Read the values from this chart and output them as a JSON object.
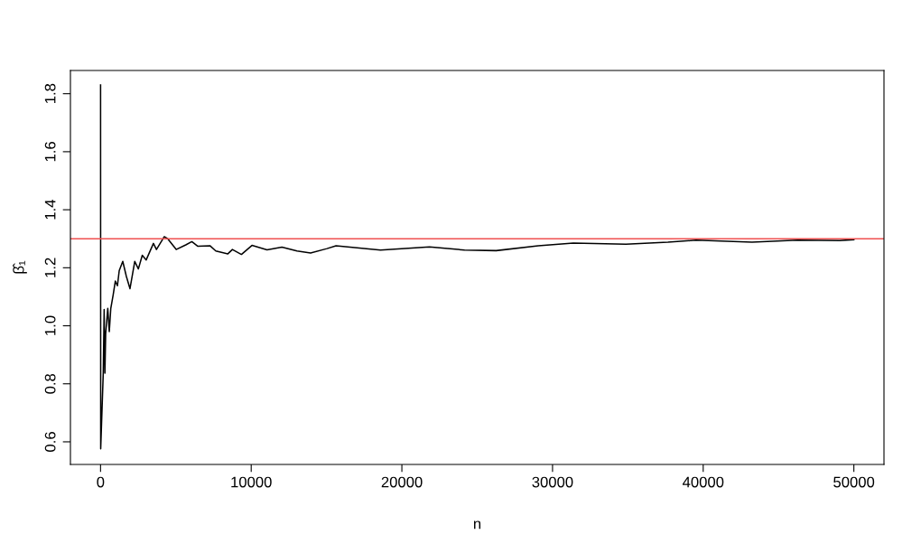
{
  "chart_data": {
    "type": "line",
    "xlabel": "n",
    "ylabel": "β̂₁",
    "xlim": [
      -1999,
      51999
    ],
    "ylim": [
      0.522,
      1.88
    ],
    "xticks": [
      0,
      10000,
      20000,
      30000,
      40000,
      50000
    ],
    "yticks": [
      0.6,
      0.8,
      {
        "value": 1,
        "label": "1.0"
      },
      1.2,
      1.4,
      1.6,
      1.8
    ],
    "grid": false,
    "legend": false,
    "marker": "none",
    "line_style": "solid",
    "ref_lines": [
      {
        "axis": "y",
        "value": 1.3,
        "color": "#f05050"
      }
    ],
    "series": [
      {
        "color": "#000000",
        "x": [
          2,
          10,
          180,
          240,
          290,
          340,
          480,
          580,
          680,
          840,
          980,
          1120,
          1240,
          1475,
          1715,
          1955,
          2270,
          2510,
          2770,
          3030,
          3510,
          3710,
          4230,
          4460,
          5020,
          5660,
          6060,
          6460,
          7260,
          7650,
          8450,
          8750,
          9350,
          10050,
          11050,
          12040,
          13040,
          13940,
          15030,
          15630,
          18580,
          21830,
          24160,
          26260,
          29050,
          31380,
          34870,
          37660,
          39520,
          43240,
          46270,
          49060,
          50000
        ],
        "values": [
          1.83,
          0.576,
          0.837,
          1.056,
          0.837,
          0.972,
          1.06,
          0.98,
          1.06,
          1.107,
          1.154,
          1.138,
          1.19,
          1.222,
          1.17,
          1.128,
          1.222,
          1.196,
          1.243,
          1.227,
          1.284,
          1.263,
          1.307,
          1.3,
          1.263,
          1.279,
          1.29,
          1.274,
          1.276,
          1.258,
          1.248,
          1.263,
          1.246,
          1.277,
          1.262,
          1.271,
          1.258,
          1.251,
          1.266,
          1.276,
          1.261,
          1.272,
          1.261,
          1.259,
          1.276,
          1.285,
          1.281,
          1.288,
          1.295,
          1.288,
          1.295,
          1.294,
          1.297
        ]
      }
    ]
  }
}
